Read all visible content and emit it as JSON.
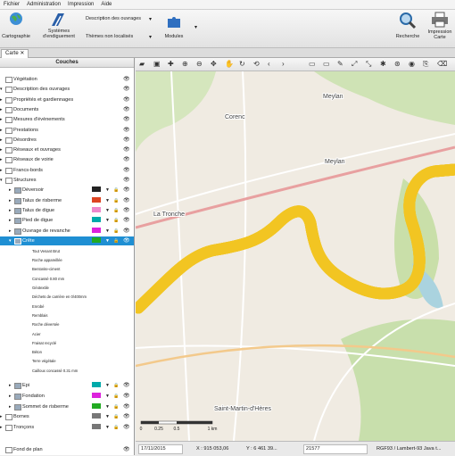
{
  "menu": [
    "Fichier",
    "Administration",
    "Impression",
    "Aide"
  ],
  "toolbar": {
    "cartographie": "Cartographie",
    "systemes": "Systèmes d'endiguement",
    "description": "Description des ouvrages",
    "themes": "Thèmes non localisés",
    "modules": "Modules",
    "recherche": "Recherche",
    "impression": "Impression Carte"
  },
  "tab": "Carte",
  "panel": {
    "title": "Couches",
    "layers": [
      "Végétation",
      "Description des ouvrages",
      "Propriétés et gardiennages",
      "Documents",
      "Mesures d'évènements",
      "Prestations",
      "Désordres",
      "Réseaux et ouvrages",
      "Réseaux de voirie",
      "Francs-bords",
      "Structures",
      "Déversoir",
      "Talus de risberme",
      "Talus de digue",
      "Pied de digue",
      "Ouvrage de revanche",
      "Crête"
    ],
    "legend": [
      "Tout Venant Brut",
      "Roche appareillée",
      "Bentonite-ciment",
      "Concassé 0.80 mm",
      "Géotextile",
      "Déchets de carrière en 0/400mm",
      "Enrobé",
      "Remblais",
      "Roche déversée",
      "Acier",
      "Fraisat recyclé",
      "Béton",
      "Terre végétale",
      "Cailloux concassé 0.31 mm"
    ],
    "layers_after": [
      "Epi",
      "Fondation",
      "Sommet de risberme",
      "Bornes",
      "Tronçons"
    ],
    "base_layer": "Fond de plan"
  },
  "map_labels": [
    "Corenc",
    "Meylan",
    "Meylan",
    "La Tronche",
    "Saint-Martin-d'Hères"
  ],
  "scale": [
    "0",
    "0.25",
    "0.5",
    "1 km"
  ],
  "status": {
    "date": "17/11/2015",
    "x": "X : 915 053,06",
    "y": "Y : 6 461 39...",
    "scale": "21577",
    "crs": "RGF93 / Lambert-93 Java t..."
  }
}
